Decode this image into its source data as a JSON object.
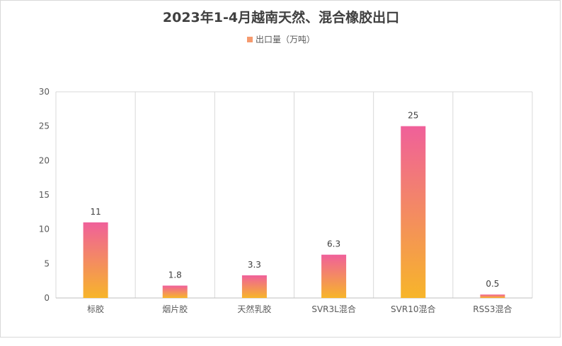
{
  "chart_data": {
    "type": "bar",
    "title": "2023年1-4月越南天然、混合橡胶出口",
    "categories": [
      "标胶",
      "烟片胶",
      "天然乳胶",
      "SVR3L混合",
      "SVR10混合",
      "RSS3混合"
    ],
    "series": [
      {
        "name": "出口量（万吨）",
        "values": [
          11,
          1.8,
          3.3,
          6.3,
          25,
          0.5
        ],
        "data_labels": [
          "11",
          "1.8",
          "3.3",
          "6.3",
          "25",
          "0.5"
        ]
      }
    ],
    "ylim": [
      0,
      30
    ],
    "yticks": [
      0,
      5,
      10,
      15,
      20,
      25,
      30
    ],
    "xlabel": "",
    "ylabel": "",
    "grid": "vertical category separators",
    "legend_position": "top"
  },
  "colors": {
    "bar_gradient_top": "#f0609a",
    "bar_gradient_bottom": "#f7b52a",
    "legend_swatch": "#f59a6e",
    "grid": "#d9d9d9",
    "axis": "#bfbfbf"
  }
}
